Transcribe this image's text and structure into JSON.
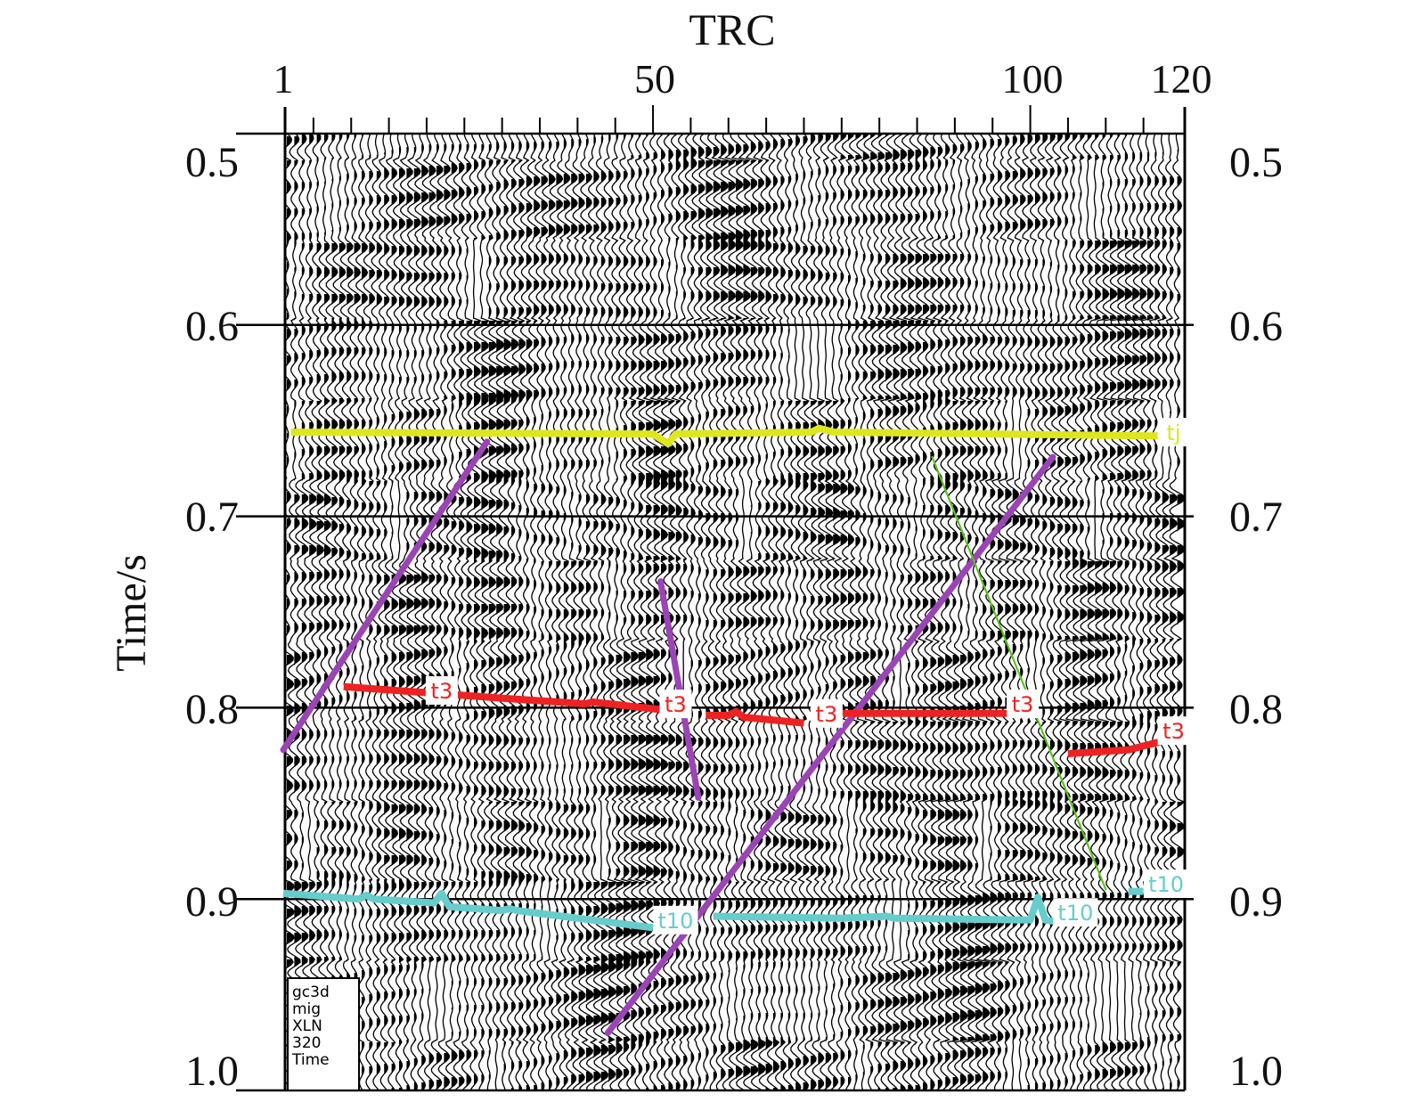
{
  "axes": {
    "x_title": "TRC",
    "x_ticks": [
      "1",
      "50",
      "100",
      "120"
    ],
    "y_title": "Time/s",
    "y_ticks": [
      "0.5",
      "0.6",
      "0.7",
      "0.8",
      "0.9",
      "1.0"
    ]
  },
  "info_box": [
    "gc3d",
    "mig",
    "XLN 320",
    "Time"
  ],
  "horizons": [
    {
      "name": "tj",
      "color": "#dde61e",
      "segments": [
        [
          [
            2,
            0.656
          ],
          [
            50,
            0.657
          ],
          [
            52,
            0.662
          ],
          [
            53,
            0.657
          ],
          [
            71,
            0.656
          ],
          [
            72,
            0.654
          ],
          [
            74,
            0.656
          ],
          [
            118,
            0.658
          ]
        ]
      ],
      "labels": [
        {
          "text": "tj",
          "trc": 119,
          "t": 0.656
        }
      ]
    },
    {
      "name": "t3",
      "color": "#ee2222",
      "segments": [
        [
          [
            9,
            0.789
          ],
          [
            30,
            0.795
          ],
          [
            41,
            0.798
          ],
          [
            42,
            0.797
          ],
          [
            51,
            0.801
          ]
        ],
        [
          [
            57,
            0.804
          ],
          [
            60,
            0.804
          ],
          [
            61,
            0.802
          ],
          [
            62,
            0.805
          ],
          [
            70,
            0.808
          ]
        ],
        [
          [
            75,
            0.803
          ],
          [
            97,
            0.803
          ]
        ],
        [
          [
            105,
            0.824
          ],
          [
            113,
            0.822
          ],
          [
            118,
            0.817
          ],
          [
            120,
            0.817
          ]
        ]
      ],
      "labels": [
        {
          "text": "t3",
          "trc": 22,
          "t": 0.791
        },
        {
          "text": "t3",
          "trc": 53,
          "t": 0.798
        },
        {
          "text": "t3",
          "trc": 73,
          "t": 0.803
        },
        {
          "text": "t3",
          "trc": 99,
          "t": 0.798
        },
        {
          "text": "t3",
          "trc": 119,
          "t": 0.812
        }
      ]
    },
    {
      "name": "t10",
      "color": "#66cccc",
      "segments": [
        [
          [
            1,
            0.897
          ],
          [
            11,
            0.9
          ],
          [
            12,
            0.898
          ],
          [
            13,
            0.9
          ],
          [
            21,
            0.902
          ],
          [
            22,
            0.897
          ],
          [
            23,
            0.904
          ],
          [
            30,
            0.906
          ],
          [
            31,
            0.905
          ],
          [
            32,
            0.906
          ],
          [
            50,
            0.915
          ]
        ],
        [
          [
            58,
            0.909
          ],
          [
            75,
            0.91
          ],
          [
            81,
            0.909
          ],
          [
            82,
            0.91
          ],
          [
            100,
            0.911
          ],
          [
            101,
            0.899
          ],
          [
            102,
            0.911
          ],
          [
            104,
            0.912
          ]
        ],
        [
          [
            113,
            0.896
          ],
          [
            115,
            0.896
          ]
        ]
      ],
      "labels": [
        {
          "text": "t10",
          "trc": 53,
          "t": 0.911
        },
        {
          "text": "t10",
          "trc": 106,
          "t": 0.907
        },
        {
          "text": "t10",
          "trc": 118,
          "t": 0.892
        }
      ]
    }
  ],
  "faults": [
    {
      "color": "#9b44b5",
      "points": [
        [
          1,
          0.822
        ],
        [
          28,
          0.661
        ]
      ]
    },
    {
      "color": "#9b44b5",
      "points": [
        [
          51,
          0.734
        ],
        [
          56,
          0.847
        ]
      ]
    },
    {
      "color": "#9b44b5",
      "points": [
        [
          44,
          0.97
        ],
        [
          103,
          0.669
        ]
      ]
    },
    {
      "color": "#5fbf28",
      "points": [
        [
          87,
          0.669
        ],
        [
          110,
          0.895
        ]
      ]
    }
  ]
}
